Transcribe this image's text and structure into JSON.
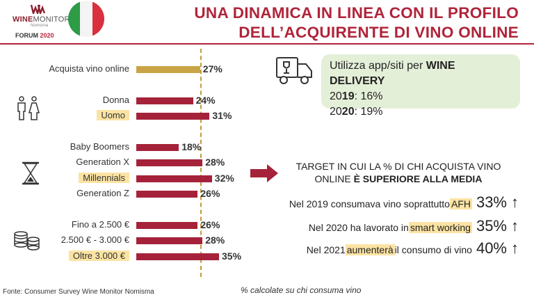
{
  "header": {
    "logo_name_bold": "WINE",
    "logo_name_light": "MONITOR",
    "logo_sub": "Nomisma",
    "logo_forum": "FORUM",
    "logo_year": "2020",
    "title_line1": "UNA DINAMICA IN LINEA CON IL PROFILO",
    "title_line2": "DELL’ACQUIRENTE DI VINO ONLINE"
  },
  "colors": {
    "accent": "#b0243a",
    "bar_main": "#a5223a",
    "bar_total": "#c9a447",
    "highlight": "#fbe3a3",
    "box": "#e4efd8",
    "avg_line": "#c49a3a"
  },
  "chart_data": {
    "type": "bar",
    "orientation": "horizontal",
    "categories": [
      "Acquista vino online",
      "Donna",
      "Uomo",
      "Baby Boomers",
      "Generation X",
      "Millennials",
      "Generation Z",
      "Fino a 2.500 €",
      "2.500 € - 3.000 €",
      "Oltre 3.000 €"
    ],
    "values": [
      27,
      24,
      31,
      18,
      28,
      32,
      26,
      26,
      28,
      35
    ],
    "value_labels": [
      "27%",
      "24%",
      "31%",
      "18%",
      "28%",
      "32%",
      "26%",
      "26%",
      "28%",
      "35%"
    ],
    "highlighted": [
      "Uomo",
      "Millennials",
      "Oltre 3.000 €"
    ],
    "reference_line": 27,
    "groups": [
      {
        "icon": "people-icon",
        "categories": [
          "Donna",
          "Uomo"
        ]
      },
      {
        "icon": "hourglass-icon",
        "categories": [
          "Baby Boomers",
          "Generation X",
          "Millennials",
          "Generation Z"
        ]
      },
      {
        "icon": "coins-icon",
        "categories": [
          "Fino a 2.500 €",
          "2.500 € - 3.000 €",
          "Oltre 3.000 €"
        ]
      }
    ],
    "xlim": [
      0,
      35
    ],
    "note": "% calcolate su chi consuma vino"
  },
  "delivery": {
    "line1_prefix": "Utilizza app/siti per ",
    "line1_bold": "WINE DELIVERY",
    "y2019_a": "20",
    "y2019_b": "19",
    "y2019_val": ": 16%",
    "y2020_a": "20",
    "y2020_b": "20",
    "y2020_val": ": 19%"
  },
  "target": {
    "line1": "TARGET IN CUI LA % DI CHI ACQUISTA VINO",
    "line2_prefix": "ONLINE ",
    "line2_bold": "È SUPERIORE ALLA MEDIA"
  },
  "stats": [
    {
      "pre": "Nel 2019 consumava vino soprattutto ",
      "hl": "AFH",
      "post": "",
      "pct": "33%",
      "arrow": "↑"
    },
    {
      "pre": "Nel 2020 ha lavorato in ",
      "hl": "smart working",
      "post": "",
      "pct": "35%",
      "arrow": "↑"
    },
    {
      "pre": "Nel 2021 ",
      "hl": "aumenterà",
      "post": " il consumo di vino",
      "pct": "40%",
      "arrow": "↑"
    }
  ],
  "footer": {
    "source": "Fonte: Consumer Survey Wine Monitor Nomisma"
  }
}
